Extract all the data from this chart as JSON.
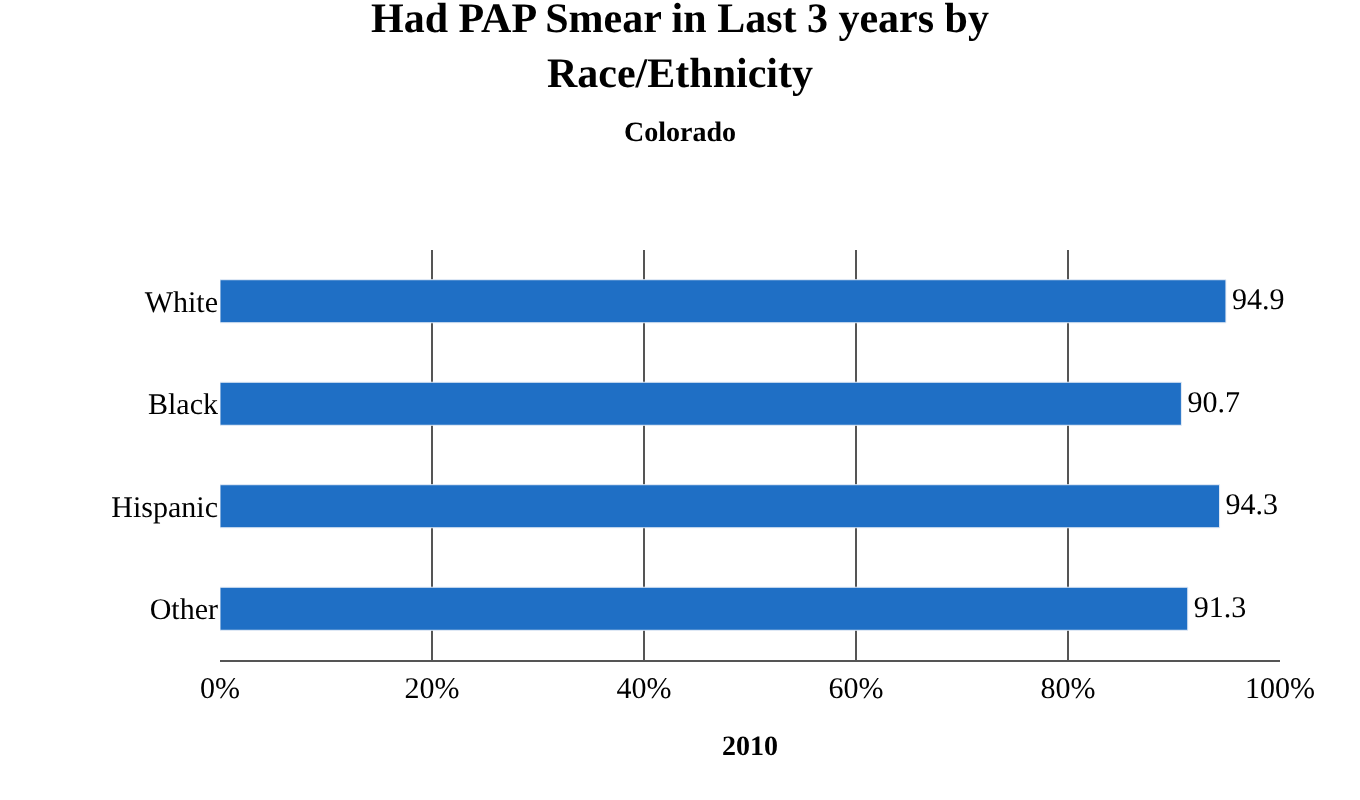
{
  "chart_data": {
    "type": "bar",
    "orientation": "horizontal",
    "title": "Had PAP Smear in Last 3 years by Race/Ethnicity",
    "subtitle": "Colorado",
    "xlabel": "2010",
    "categories": [
      "White",
      "Black",
      "Hispanic",
      "Other"
    ],
    "values": [
      94.9,
      90.7,
      94.3,
      91.3
    ],
    "color": "#1f6fc5",
    "xlim": [
      0,
      100
    ],
    "xticks": [
      {
        "value": 0,
        "label": "0%"
      },
      {
        "value": 20,
        "label": "20%"
      },
      {
        "value": 40,
        "label": "40%"
      },
      {
        "value": 60,
        "label": "60%"
      },
      {
        "value": 80,
        "label": "80%"
      },
      {
        "value": 100,
        "label": "100%"
      }
    ],
    "grid": "x",
    "data_labels": true
  }
}
